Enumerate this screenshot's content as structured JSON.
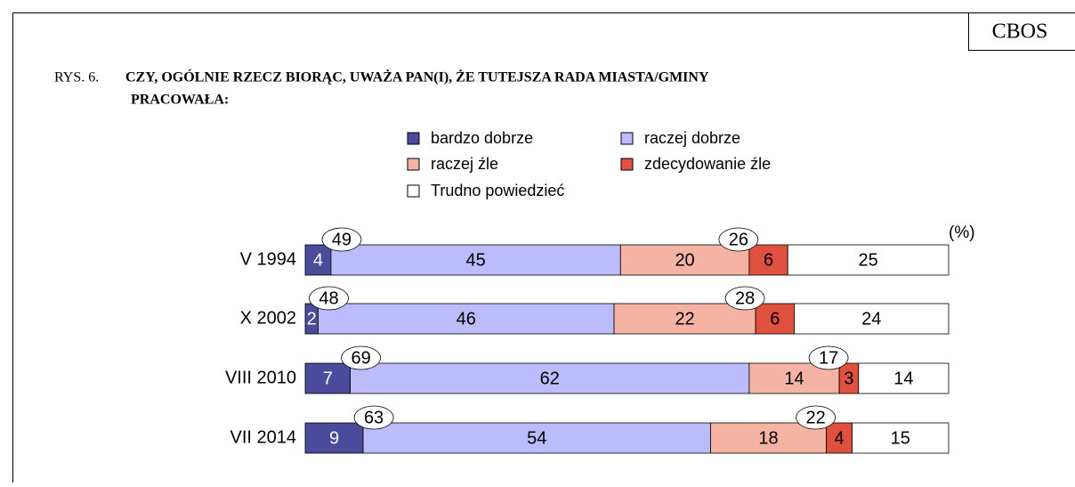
{
  "chart_data": {
    "type": "bar",
    "orientation": "horizontal",
    "stacked": true,
    "source": "CBOS",
    "figure_label": "RYS. 6.",
    "title": [
      "CZY, OGÓLNIE RZECZ BIORĄC, UWAŻA PAN(I), ŻE TUTEJSZA RADA MIASTA/GMINY",
      "PRACOWAŁA:"
    ],
    "unit_label": "(%)",
    "categories": [
      "V 1994",
      "X 2002",
      "VIII 2010",
      "VII 2014"
    ],
    "series": [
      {
        "name": "bardzo dobrze",
        "color": "#4b4b9b",
        "values": [
          4,
          2,
          7,
          9
        ]
      },
      {
        "name": "raczej dobrze",
        "color": "#bcbcfc",
        "values": [
          45,
          46,
          62,
          54
        ]
      },
      {
        "name": "raczej źle",
        "color": "#f5b3a3",
        "values": [
          20,
          22,
          14,
          18
        ]
      },
      {
        "name": "zdecydowanie źle",
        "color": "#e0503f",
        "values": [
          6,
          6,
          3,
          4
        ]
      },
      {
        "name": "Trudno powiedzieć",
        "color": "#ffffff",
        "values": [
          25,
          24,
          14,
          15
        ]
      }
    ],
    "positive_totals": [
      49,
      48,
      69,
      63
    ],
    "negative_totals": [
      26,
      28,
      17,
      22
    ],
    "xlim": [
      0,
      100
    ]
  }
}
